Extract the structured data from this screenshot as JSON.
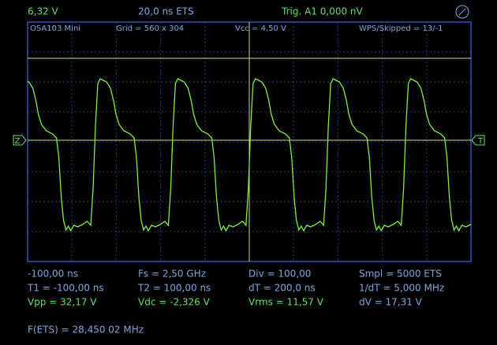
{
  "header": {
    "channel_voltage": "6,32 V",
    "timebase": "20,0 ns  ETS",
    "trigger": "Trig. A1  0,000 nV"
  },
  "screen": {
    "device": "OSA103 Mini",
    "grid": "Grid = 560 x 304",
    "vcc": "Vcc = 4,50 V",
    "wps": "WPS/Skipped  = 13/-1",
    "zero_marker": "Z",
    "trigger_marker": "T"
  },
  "measurements": {
    "rows": [
      [
        "-100,00 ns",
        "Fs = 2,50 GHz",
        "Div = 100,00",
        "Smpl = 5000 ETS"
      ],
      [
        "T1 = -100,00 ns",
        "T2 = 100,00 ns",
        "dT = 200,0 ns",
        "1/dT = 5,000 MHz"
      ],
      [
        "Vpp = 32,17 V",
        "Vdc = -2,326 V",
        "Vrms = 11,57 V",
        "dV = 17,31 V"
      ]
    ],
    "frequency": "F(ETS) = 28,450 02 MHz"
  }
}
